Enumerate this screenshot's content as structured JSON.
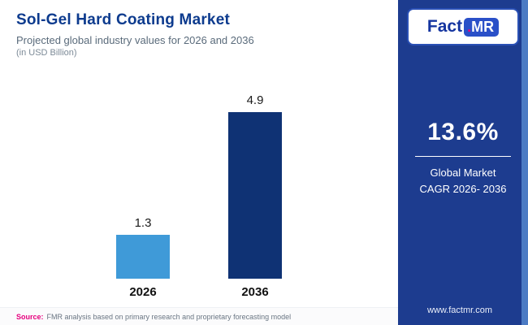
{
  "header": {
    "title": "Sol-Gel Hard Coating Market",
    "subtitle": "Projected global industry values for 2026 and 2036",
    "unit_note": "(in USD Billion)"
  },
  "chart_data": {
    "type": "bar",
    "categories": [
      "2026",
      "2036"
    ],
    "values": [
      1.3,
      4.9
    ],
    "value_labels": [
      "1.3",
      "4.9"
    ],
    "title": "Sol-Gel Hard Coating Market",
    "xlabel": "",
    "ylabel": "USD Billion",
    "ylim": [
      0,
      5
    ],
    "grid": false,
    "legend": false,
    "bar_colors": [
      "#3f9ad8",
      "#0f3274"
    ]
  },
  "footer": {
    "source_prefix": "Source:",
    "source_text": "FMR analysis based on primary research and proprietary forecasting model"
  },
  "sidebar": {
    "logo": {
      "brand_main": "Fact",
      "brand_dot": ".",
      "brand_suffix": "MR"
    },
    "cagr_value": "13.6%",
    "caption_line1": "Global Market",
    "caption_line2": "CAGR 2026- 2036",
    "website": "www.factmr.com"
  },
  "colors": {
    "title_text": "#0d3b8e",
    "sidebar_bg": "#1d3c8f",
    "edge_strip": "#4c7bc4",
    "accent_pink": "#e6007e",
    "bar_2026": "#3f9ad8",
    "bar_2036": "#0f3274"
  }
}
